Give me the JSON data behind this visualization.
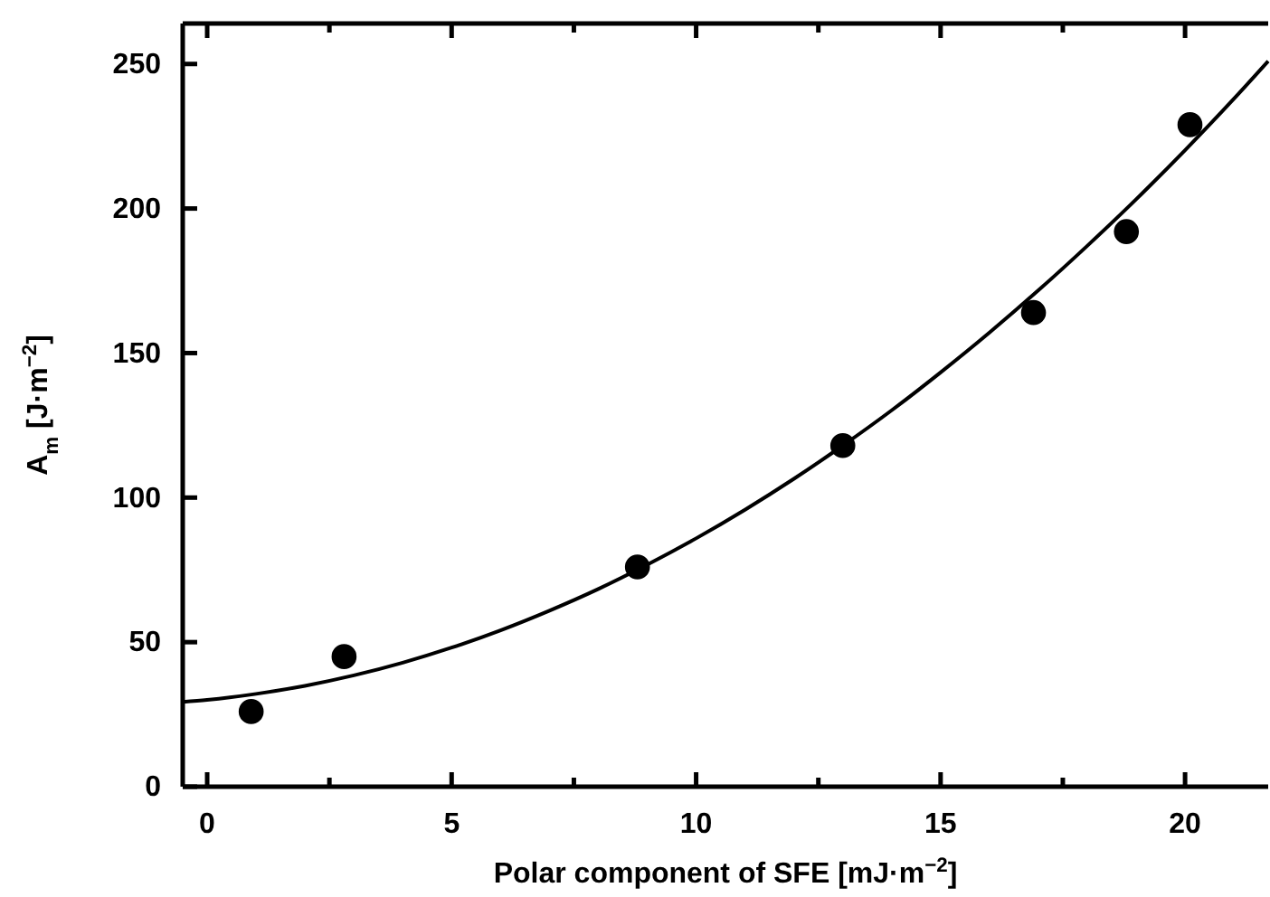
{
  "chart_data": {
    "type": "scatter",
    "xlabel": "Polar component of SFE [mJ·m$^{−2}$]",
    "ylabel": "A$_{m}$ [J·m$^{−2}$]",
    "x": [
      0.9,
      2.8,
      8.8,
      13.0,
      16.9,
      18.8,
      20.1
    ],
    "series": [
      {
        "color": "#000000",
        "marker": "circle",
        "values": [
          26,
          45,
          76,
          118,
          164,
          192,
          229
        ]
      },
      {
        "type": "line",
        "color": "#000000",
        "marker": "none",
        "line_style": "solid",
        "x": [
          -0.5,
          0,
          1,
          2,
          3,
          4,
          5,
          6,
          7,
          8,
          9,
          10,
          11,
          12,
          13,
          14,
          15,
          16,
          17,
          18,
          19,
          20,
          21,
          21.7
        ],
        "values": [
          29.3,
          30,
          32.1,
          34.9,
          38.5,
          42.9,
          48.1,
          54.1,
          60.9,
          68.4,
          76.8,
          85.9,
          95.8,
          106.5,
          118,
          130.2,
          143.3,
          157.1,
          171.7,
          187.1,
          203.2,
          220.2,
          238,
          251
        ]
      }
    ],
    "xlim": [
      -0.5,
      21.7
    ],
    "ylim": [
      0,
      264
    ],
    "xticks": [
      0,
      {
        "value": 2.5,
        "label": null
      },
      5,
      {
        "value": 7.5,
        "label": null
      },
      10,
      {
        "value": 12.5,
        "label": null
      },
      15,
      {
        "value": 17.5,
        "label": null
      },
      20
    ],
    "yticks": [
      0,
      50,
      100,
      150,
      200,
      250
    ],
    "grid": false
  }
}
